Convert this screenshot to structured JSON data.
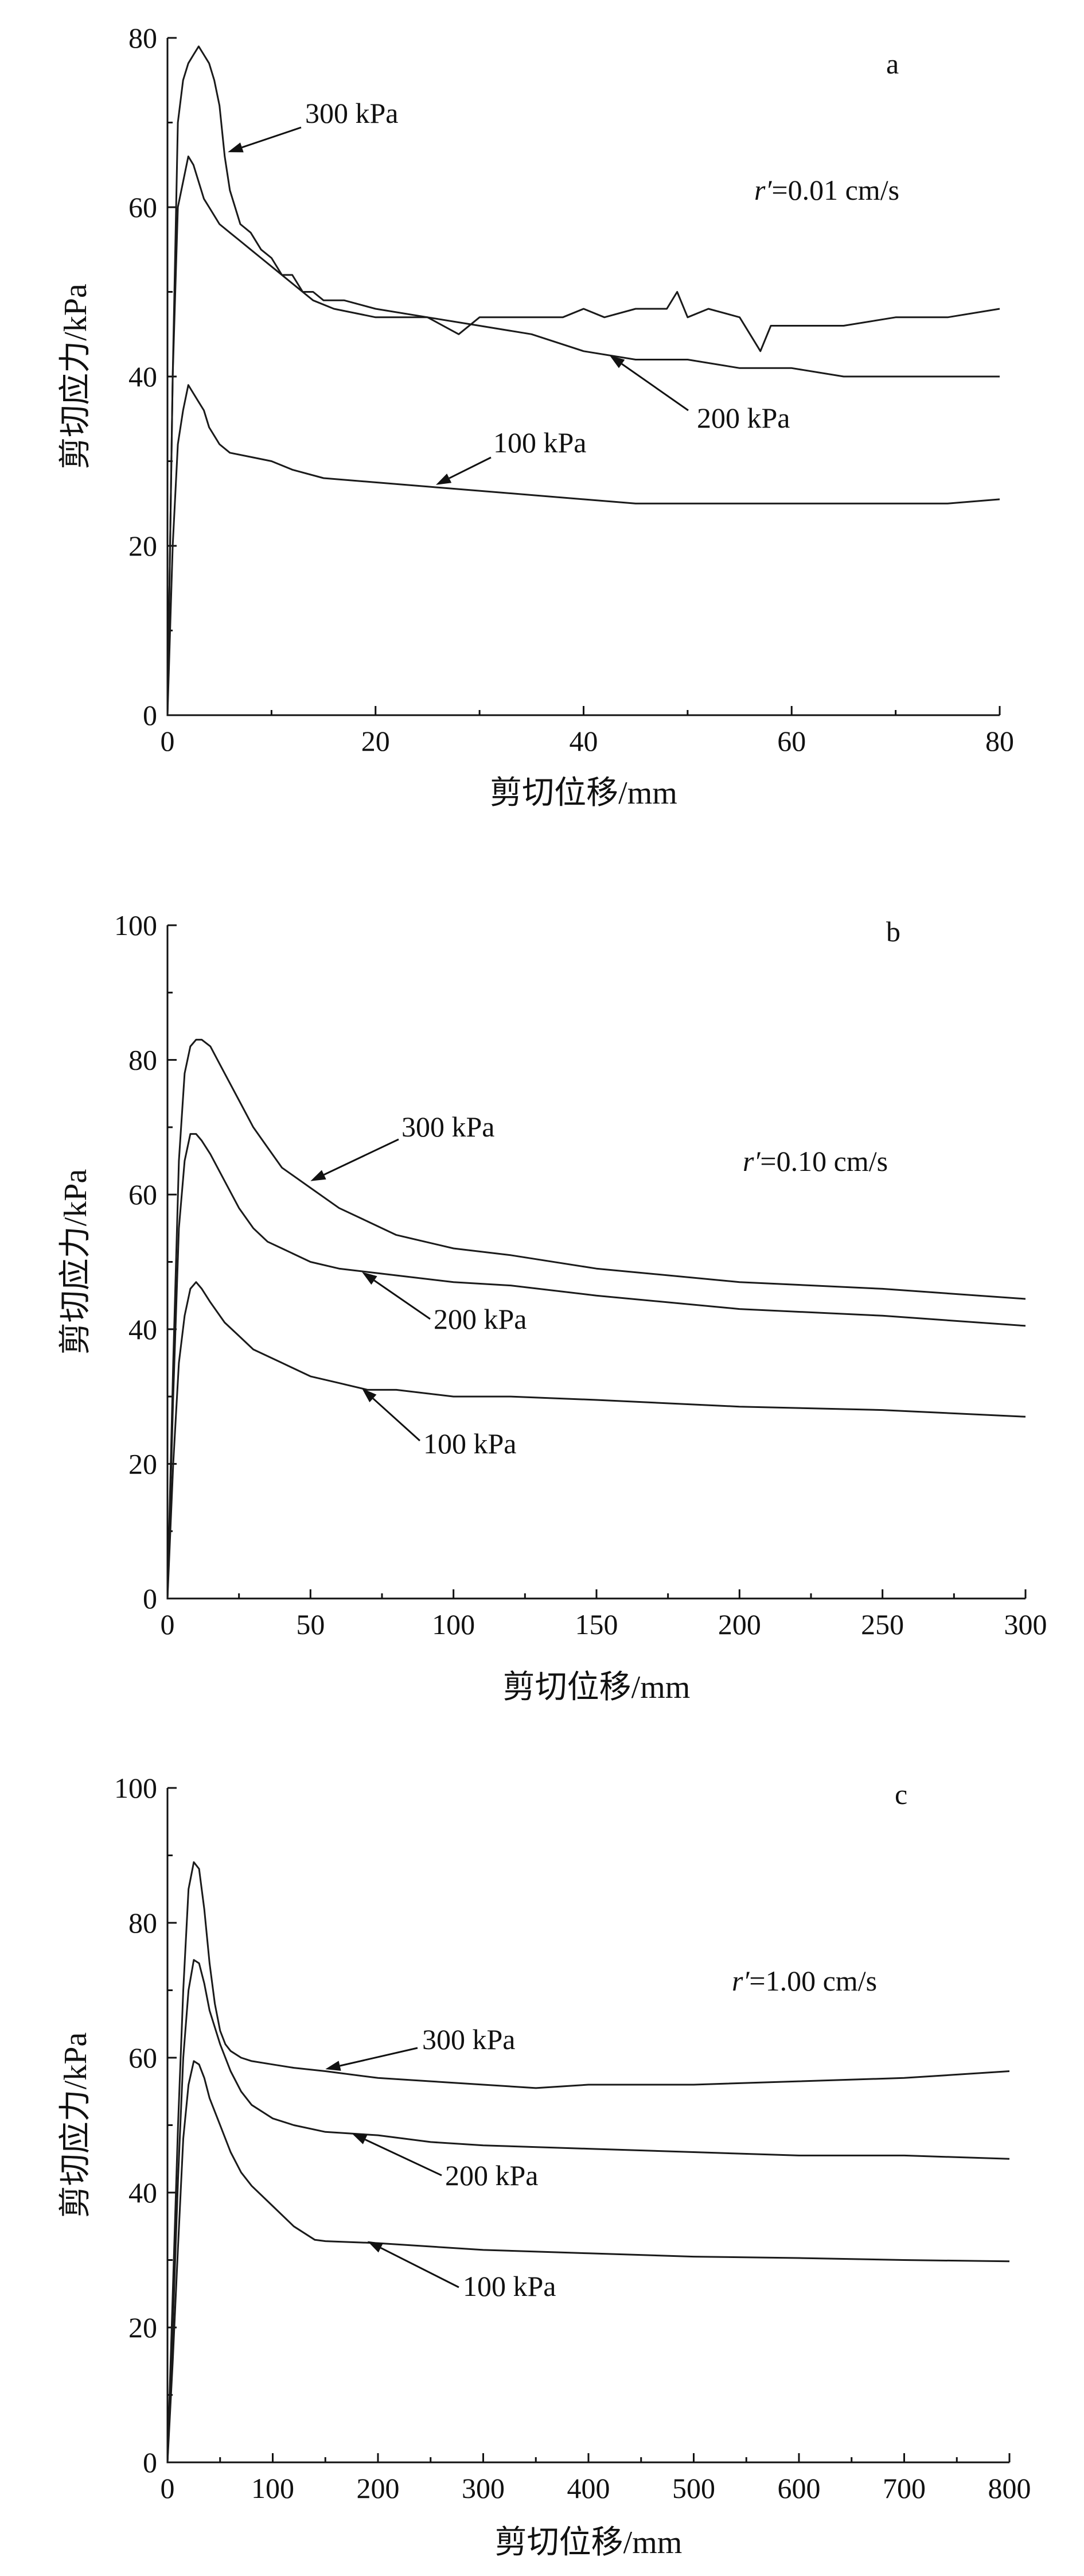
{
  "chart_data": [
    {
      "type": "line",
      "panel": "a",
      "rate_label": "=0.01 cm/s",
      "rate_symbol": "r′",
      "xlabel": "剪切位移/mm",
      "ylabel": "剪切应力/kPa",
      "xlim": [
        0,
        80
      ],
      "ylim": [
        0,
        80
      ],
      "xticks": [
        0,
        20,
        40,
        60,
        80
      ],
      "yticks": [
        0,
        20,
        40,
        60,
        80
      ],
      "series": [
        {
          "name": "300 kPa",
          "x": [
            0,
            0.5,
            1,
            1.5,
            2,
            2.5,
            3,
            3.5,
            4,
            4.5,
            5,
            5.5,
            6,
            7,
            8,
            9,
            10,
            11,
            12,
            13,
            14,
            15,
            17,
            20,
            25,
            28,
            30,
            35,
            38,
            40,
            42,
            45,
            48,
            49,
            50,
            52,
            55,
            57,
            58,
            60,
            65,
            70,
            75,
            80
          ],
          "y": [
            0,
            40,
            70,
            75,
            77,
            78,
            79,
            78,
            77,
            75,
            72,
            66,
            62,
            58,
            57,
            55,
            54,
            52,
            52,
            50,
            50,
            49,
            49,
            48,
            47,
            45,
            47,
            47,
            47,
            48,
            47,
            48,
            48,
            50,
            47,
            48,
            47,
            43,
            46,
            46,
            46,
            47,
            47,
            48
          ]
        },
        {
          "name": "200 kPa",
          "x": [
            0,
            0.5,
            1,
            1.5,
            2,
            2.5,
            3,
            3.5,
            4,
            5,
            6,
            7,
            8,
            9,
            10,
            12,
            14,
            16,
            20,
            25,
            30,
            35,
            40,
            45,
            50,
            55,
            60,
            65,
            70,
            75,
            80
          ],
          "y": [
            0,
            40,
            60,
            63,
            66,
            65,
            63,
            61,
            60,
            58,
            57,
            56,
            55,
            54,
            53,
            51,
            49,
            48,
            47,
            47,
            46,
            45,
            43,
            42,
            42,
            41,
            41,
            40,
            40,
            40,
            40
          ]
        },
        {
          "name": "100 kPa",
          "x": [
            0,
            0.5,
            1,
            1.5,
            2,
            2.5,
            3,
            3.5,
            4,
            5,
            6,
            8,
            10,
            12,
            15,
            20,
            25,
            30,
            35,
            40,
            45,
            50,
            55,
            60,
            65,
            70,
            75,
            80
          ],
          "y": [
            0,
            20,
            32,
            36,
            39,
            38,
            37,
            36,
            34,
            32,
            31,
            30.5,
            30,
            29,
            28,
            27.5,
            27,
            26.5,
            26,
            25.5,
            25,
            25,
            25,
            25,
            25,
            25,
            25,
            25.5
          ]
        }
      ],
      "annotations": [
        "300 kPa",
        "200 kPa",
        "100 kPa"
      ]
    },
    {
      "type": "line",
      "panel": "b",
      "rate_label": "=0.10 cm/s",
      "rate_symbol": "r′",
      "xlabel": "剪切位移/mm",
      "ylabel": "剪切应力/kPa",
      "xlim": [
        0,
        300
      ],
      "ylim": [
        0,
        100
      ],
      "xticks": [
        0,
        50,
        100,
        150,
        200,
        250,
        300
      ],
      "yticks": [
        0,
        20,
        40,
        60,
        80,
        100
      ],
      "series": [
        {
          "name": "300 kPa",
          "x": [
            0,
            2,
            4,
            6,
            8,
            10,
            12,
            15,
            20,
            25,
            30,
            35,
            40,
            50,
            60,
            70,
            80,
            100,
            120,
            150,
            200,
            250,
            300
          ],
          "y": [
            0,
            35,
            65,
            78,
            82,
            83,
            83,
            82,
            78,
            74,
            70,
            67,
            64,
            61,
            58,
            56,
            54,
            52,
            51,
            49,
            47,
            46,
            44.5
          ]
        },
        {
          "name": "200 kPa",
          "x": [
            0,
            2,
            4,
            6,
            8,
            10,
            12,
            15,
            20,
            25,
            30,
            35,
            40,
            50,
            60,
            70,
            80,
            100,
            120,
            150,
            200,
            250,
            300
          ],
          "y": [
            0,
            30,
            55,
            65,
            69,
            69,
            68,
            66,
            62,
            58,
            55,
            53,
            52,
            50,
            49,
            48.5,
            48,
            47,
            46.5,
            45,
            43,
            42,
            40.5
          ]
        },
        {
          "name": "100 kPa",
          "x": [
            0,
            2,
            4,
            6,
            8,
            10,
            12,
            15,
            20,
            25,
            30,
            40,
            50,
            60,
            70,
            80,
            100,
            120,
            150,
            200,
            250,
            300
          ],
          "y": [
            0,
            20,
            35,
            42,
            46,
            47,
            46,
            44,
            41,
            39,
            37,
            35,
            33,
            32,
            31,
            31,
            30,
            30,
            29.5,
            28.5,
            28,
            27
          ]
        }
      ],
      "annotations": [
        "300 kPa",
        "200 kPa",
        "100 kPa"
      ]
    },
    {
      "type": "line",
      "panel": "c",
      "rate_label": "=1.00 cm/s",
      "rate_symbol": "r′",
      "xlabel": "剪切位移/mm",
      "ylabel": "剪切应力/kPa",
      "xlim": [
        0,
        800
      ],
      "ylim": [
        0,
        100
      ],
      "xticks": [
        0,
        100,
        200,
        300,
        400,
        500,
        600,
        700,
        800
      ],
      "yticks": [
        0,
        20,
        40,
        60,
        80,
        100
      ],
      "series": [
        {
          "name": "300 kPa",
          "x": [
            0,
            5,
            10,
            15,
            20,
            25,
            30,
            35,
            40,
            45,
            50,
            55,
            60,
            70,
            80,
            100,
            120,
            150,
            200,
            250,
            300,
            350,
            400,
            500,
            600,
            700,
            800
          ],
          "y": [
            0,
            25,
            50,
            70,
            85,
            89,
            88,
            82,
            74,
            68,
            64,
            62,
            61,
            60,
            59.5,
            59,
            58.5,
            58,
            57,
            56.5,
            56,
            55.5,
            56,
            56,
            56.5,
            57,
            58
          ]
        },
        {
          "name": "200 kPa",
          "x": [
            0,
            5,
            10,
            15,
            20,
            25,
            30,
            35,
            40,
            50,
            60,
            70,
            80,
            100,
            120,
            150,
            200,
            250,
            300,
            400,
            500,
            600,
            700,
            800
          ],
          "y": [
            0,
            20,
            42,
            60,
            70,
            74.5,
            74,
            71,
            67,
            62,
            58,
            55,
            53,
            51,
            50,
            49,
            48.5,
            47.5,
            47,
            46.5,
            46,
            45.5,
            45.5,
            45
          ]
        },
        {
          "name": "100 kPa",
          "x": [
            0,
            5,
            10,
            15,
            20,
            25,
            30,
            35,
            40,
            50,
            60,
            70,
            80,
            100,
            120,
            140,
            150,
            200,
            300,
            400,
            500,
            600,
            700,
            800
          ],
          "y": [
            0,
            15,
            32,
            48,
            56,
            59.5,
            59,
            57,
            54,
            50,
            46,
            43,
            41,
            38,
            35,
            33,
            32.8,
            32.5,
            31.5,
            31,
            30.5,
            30.3,
            30,
            29.8
          ]
        }
      ],
      "annotations": [
        "300 kPa",
        "200 kPa",
        "100 kPa"
      ]
    }
  ]
}
